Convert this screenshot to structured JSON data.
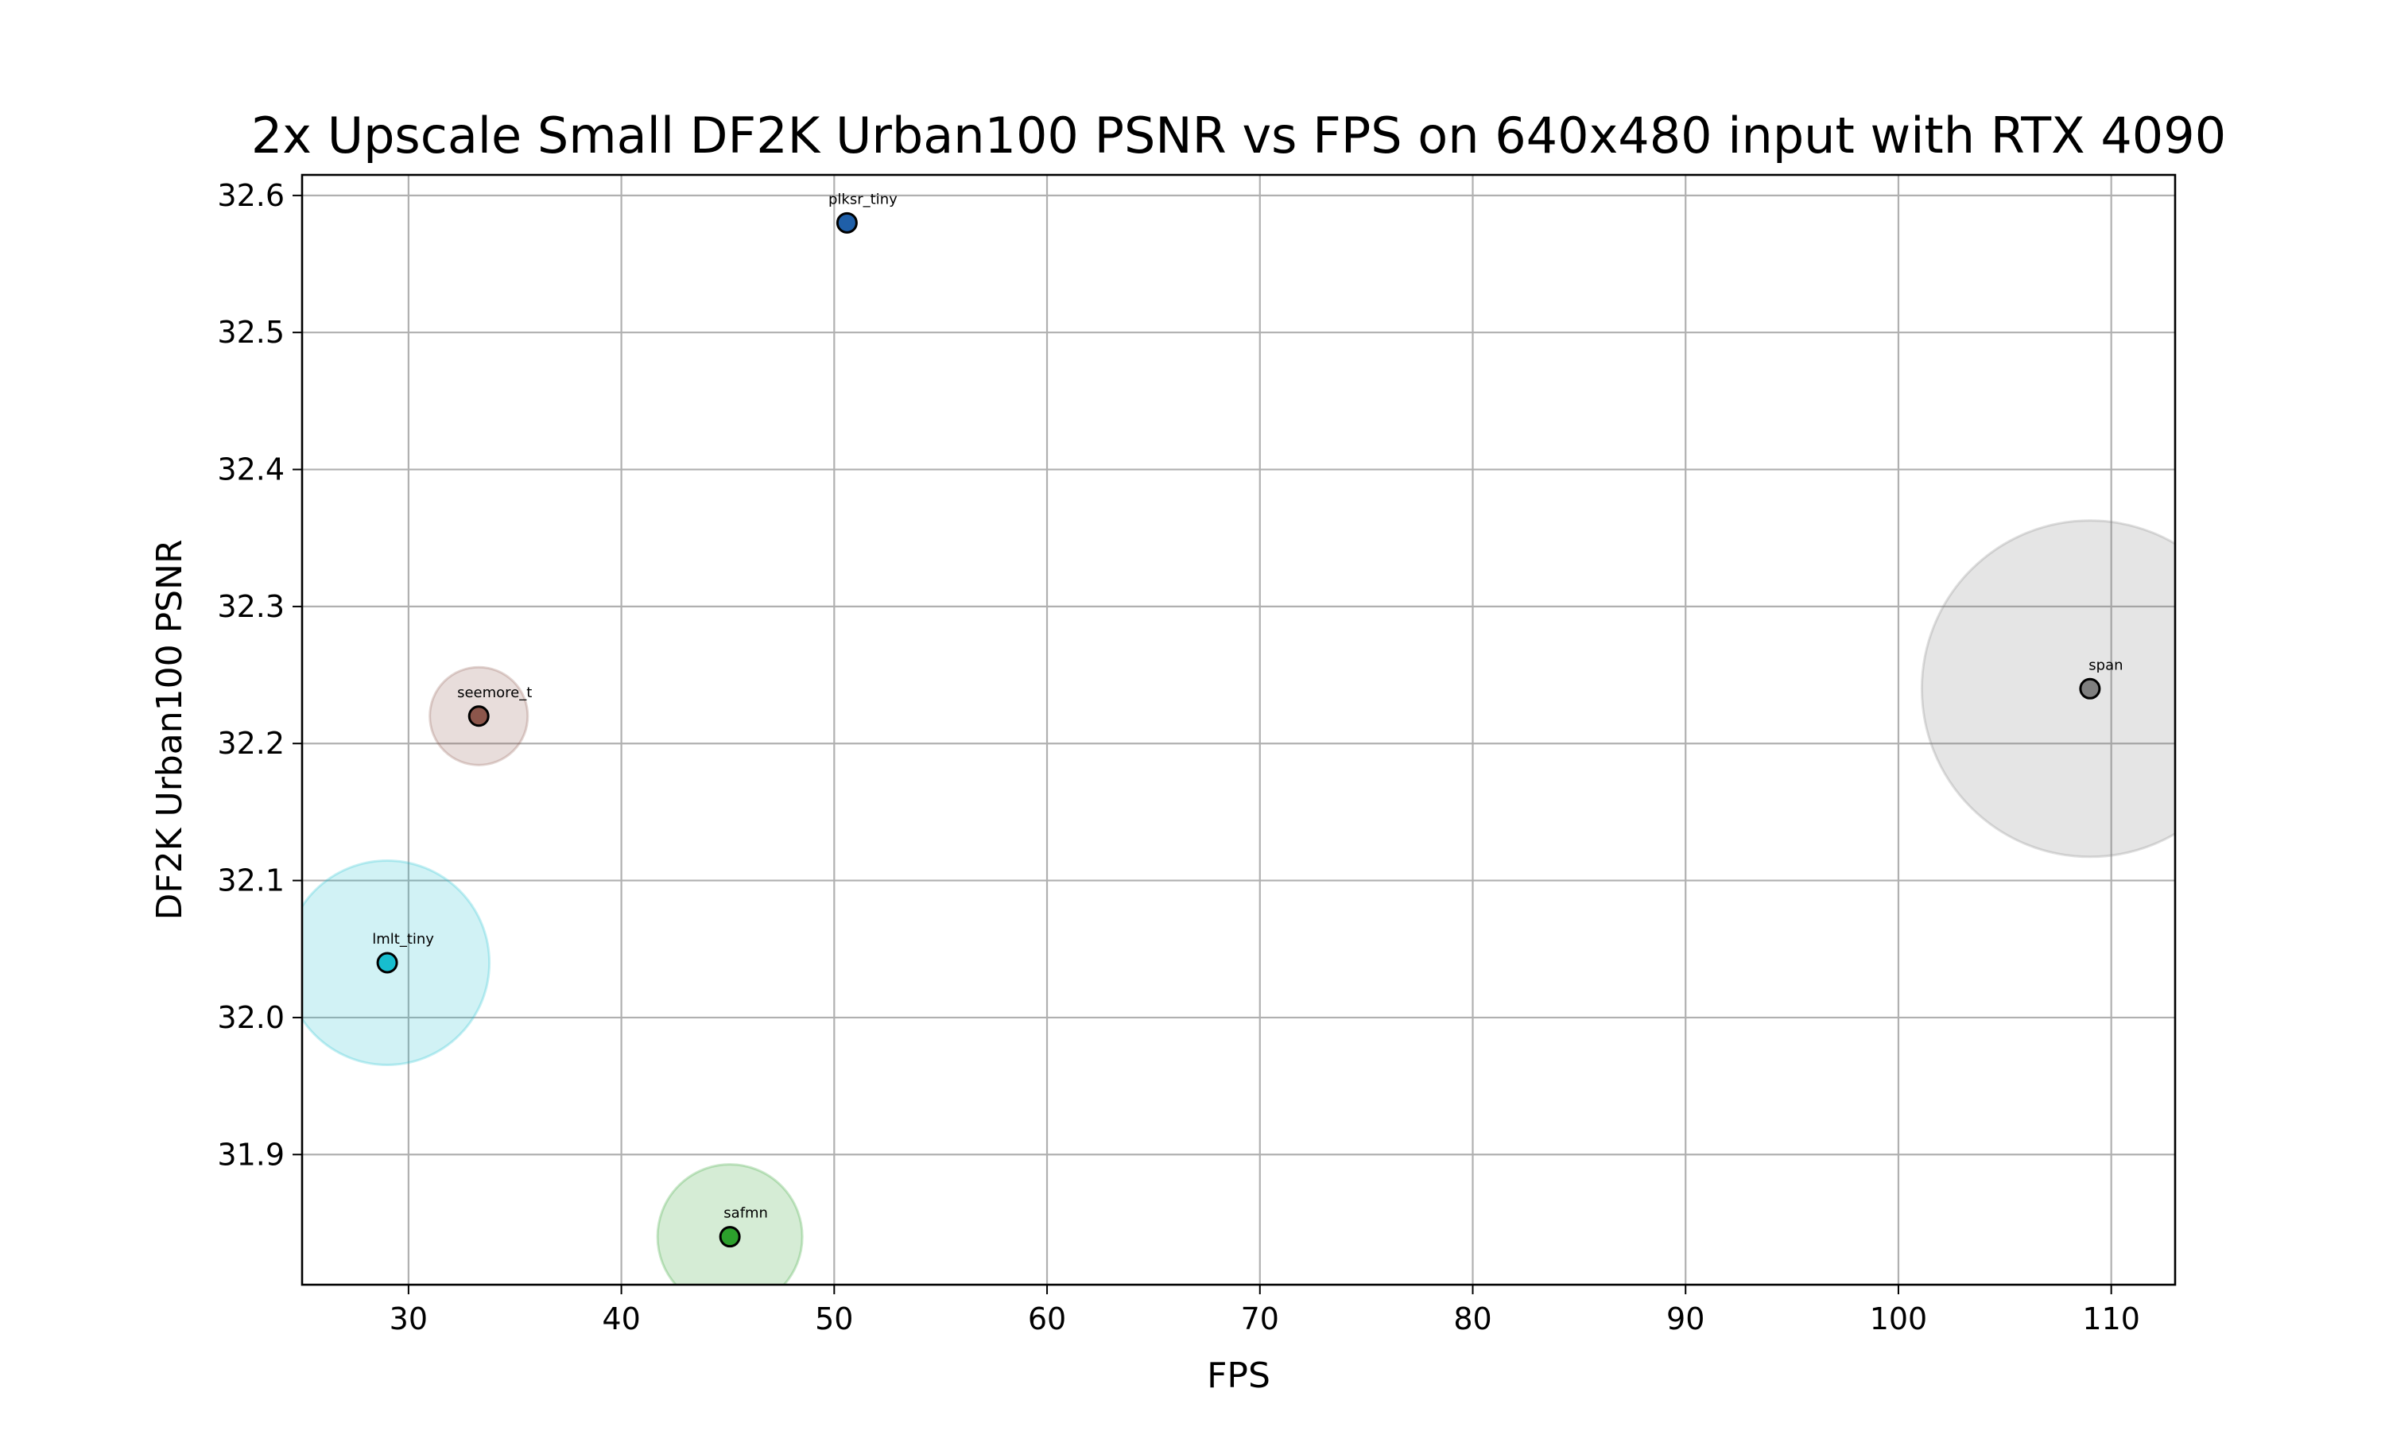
{
  "chart_data": {
    "type": "scatter",
    "title": "2x Upscale Small DF2K Urban100 PSNR vs FPS on 640x480 input with RTX 4090",
    "xlabel": "FPS",
    "ylabel": "DF2K Urban100 PSNR",
    "xlim": [
      25,
      113
    ],
    "ylim": [
      31.805,
      32.615
    ],
    "x_ticks": [
      30,
      40,
      50,
      60,
      70,
      80,
      90,
      100,
      110
    ],
    "x_tick_labels": [
      "30",
      "40",
      "50",
      "60",
      "70",
      "80",
      "90",
      "100",
      "110"
    ],
    "y_ticks": [
      31.9,
      32.0,
      32.1,
      32.2,
      32.3,
      32.4,
      32.5,
      32.6
    ],
    "y_tick_labels": [
      "31.9",
      "32.0",
      "32.1",
      "32.2",
      "32.3",
      "32.4",
      "32.5",
      "32.6"
    ],
    "grid": true,
    "legend": "none",
    "points": [
      {
        "label": "plksr_tiny",
        "x": 50.6,
        "y": 32.58,
        "color": "#1f5fa8",
        "halo_fps": 0
      },
      {
        "label": "span",
        "x": 109.0,
        "y": 32.24,
        "color": "#7f7f7f",
        "halo_fps": 7.9
      },
      {
        "label": "seemore_t",
        "x": 33.3,
        "y": 32.22,
        "color": "#8c564b",
        "halo_fps": 2.3
      },
      {
        "label": "lmlt_tiny",
        "x": 29.0,
        "y": 32.04,
        "color": "#17becf",
        "halo_fps": 4.8
      },
      {
        "label": "safmn",
        "x": 45.1,
        "y": 31.84,
        "color": "#2ca02c",
        "halo_fps": 3.4
      }
    ]
  }
}
